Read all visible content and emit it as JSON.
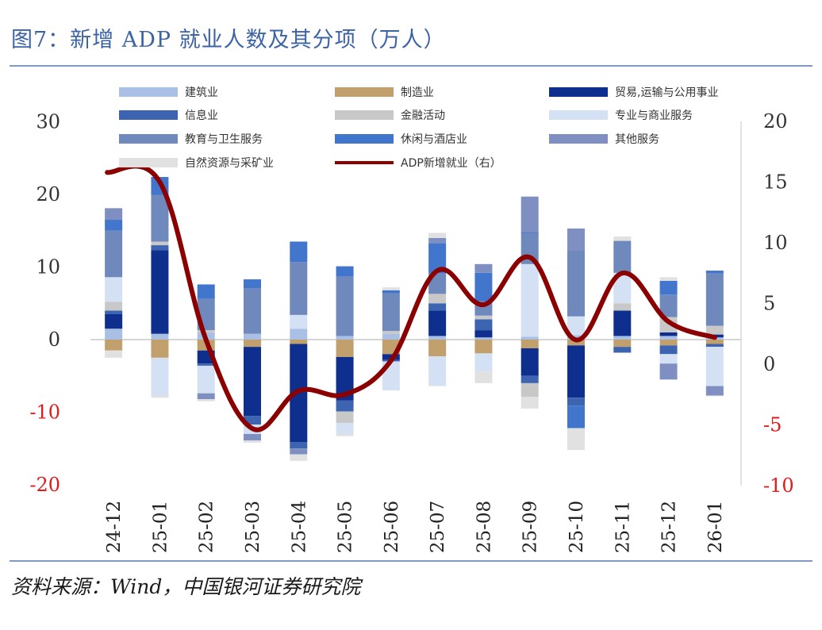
{
  "figure": {
    "title": "图7：新增 ADP 就业人数及其分项（万人）",
    "source": "资料来源：Wind，中国银河证券研究院"
  },
  "chart_data": {
    "type": "bar",
    "stacked": true,
    "title": "新增 ADP 就业人数及其分项（万人）",
    "categories": [
      "24-12",
      "25-01",
      "25-02",
      "25-03",
      "25-04",
      "25-05",
      "25-06",
      "25-07",
      "25-08",
      "25-09",
      "25-10",
      "25-11",
      "25-12",
      "26-01"
    ],
    "left_axis": {
      "ylim": [
        -20,
        30
      ],
      "ticks": [
        "30",
        "20",
        "10",
        "0",
        "-10",
        "-20"
      ]
    },
    "right_axis": {
      "ylim": [
        -10,
        20
      ],
      "ticks": [
        "20",
        "15",
        "10",
        "5",
        "0",
        "-5",
        "-10"
      ]
    },
    "series": [
      {
        "name": "建筑业",
        "color": "#a9c0e4",
        "values": [
          1.5,
          0.8,
          1.0,
          0.8,
          1.5,
          0.5,
          0.8,
          0.5,
          0.3,
          0.4,
          0.6,
          0.5,
          0.5,
          0.3
        ]
      },
      {
        "name": "制造业",
        "color": "#c2a06e",
        "values": [
          -1.5,
          -2.5,
          -1.5,
          -1.0,
          -0.6,
          -2.4,
          -2.0,
          -2.3,
          -1.9,
          -1.2,
          -0.8,
          -1.0,
          -0.8,
          -0.6
        ]
      },
      {
        "name": "贸易,运输与公用事业",
        "color": "#0f2f8e",
        "values": [
          2.0,
          11.5,
          -1.8,
          -9.5,
          -13.5,
          -6.0,
          -0.8,
          3.5,
          1.0,
          -3.8,
          -7.2,
          3.5,
          0.5,
          0.4
        ]
      },
      {
        "name": "信息业",
        "color": "#3c64b0",
        "values": [
          0.5,
          0.7,
          -0.3,
          -1.2,
          -0.9,
          -1.5,
          -0.2,
          1.0,
          1.5,
          -1.0,
          -1.1,
          -0.8,
          -1.2,
          -0.4
        ]
      },
      {
        "name": "金融活动",
        "color": "#c8c8c8",
        "values": [
          1.2,
          0.5,
          0.3,
          0.0,
          0.0,
          -1.6,
          0.4,
          1.3,
          0.5,
          -1.9,
          0.0,
          1.0,
          2.1,
          1.2
        ]
      },
      {
        "name": "专业与商业服务",
        "color": "#d4e0f3",
        "values": [
          3.4,
          -5.2,
          -3.8,
          -1.3,
          1.9,
          -1.5,
          -4.0,
          -4.1,
          -2.5,
          10.0,
          2.6,
          4.2,
          -1.3,
          -5.4
        ]
      },
      {
        "name": "教育与卫生服务",
        "color": "#6f89bd",
        "values": [
          6.4,
          6.4,
          4.3,
          6.3,
          7.3,
          8.2,
          5.2,
          2.8,
          2.0,
          4.3,
          9.1,
          4.4,
          3.1,
          7.2
        ]
      },
      {
        "name": "休闲与酒店业",
        "color": "#4275cc",
        "values": [
          1.5,
          2.5,
          2.0,
          1.2,
          2.8,
          1.4,
          0.4,
          4.2,
          3.9,
          0.1,
          -3.1,
          0.0,
          1.9,
          0.4
        ]
      },
      {
        "name": "其他服务",
        "color": "#7f8fc1",
        "values": [
          1.6,
          0.0,
          -0.8,
          -0.9,
          -0.8,
          0.0,
          0.0,
          0.7,
          1.2,
          4.9,
          3.0,
          0.0,
          -2.2,
          -1.3
        ]
      },
      {
        "name": "自然资源与采矿业",
        "color": "#e1e1e1",
        "values": [
          -1.0,
          -0.3,
          -0.3,
          -0.3,
          -0.9,
          -0.3,
          0.4,
          0.7,
          -1.6,
          -1.6,
          -3.0,
          0.6,
          0.5,
          -0.1
        ]
      }
    ],
    "line_series": {
      "name": "ADP新增就业（右）",
      "axis": "right",
      "color": "#8b0000",
      "values": [
        15.8,
        15.0,
        2.0,
        -5.3,
        -2.2,
        -2.5,
        0.3,
        7.7,
        4.9,
        8.8,
        2.0,
        7.5,
        3.5,
        2.2
      ]
    },
    "legend": {
      "position": "top",
      "columns": 3
    }
  }
}
